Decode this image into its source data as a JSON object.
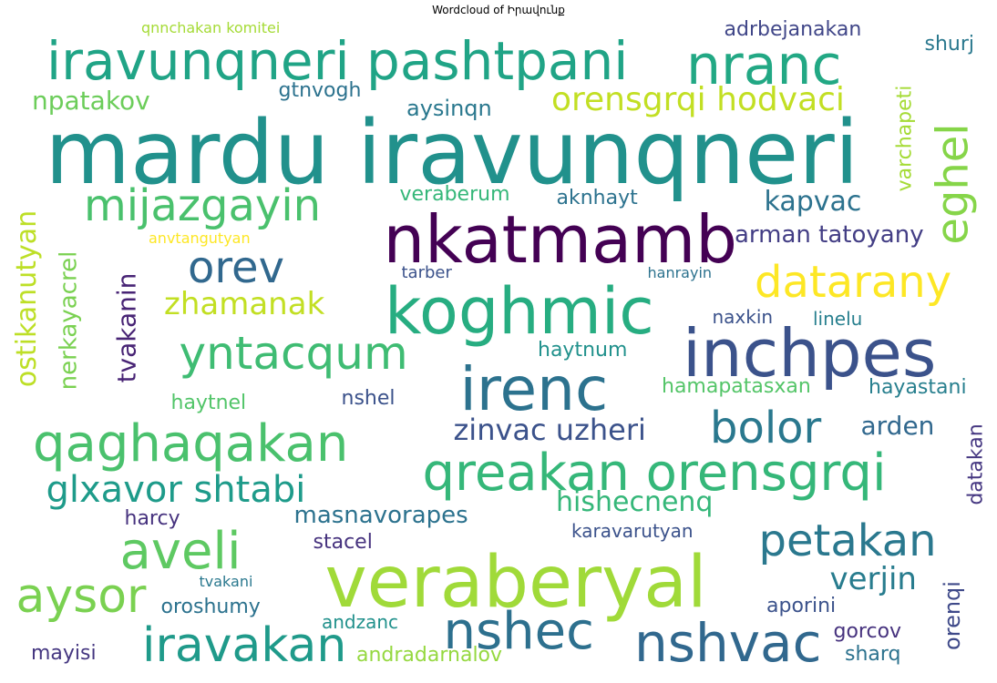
{
  "title": "Wordcloud of Իրավունք",
  "words": [
    {
      "text": "mardu iravunqneri",
      "color": "#21918c"
    },
    {
      "text": "veraberyal",
      "color": "#a0da39"
    },
    {
      "text": "nkatmamb",
      "color": "#440154"
    },
    {
      "text": "inchpes",
      "color": "#3b528b"
    },
    {
      "text": "koghmic",
      "color": "#27ad81"
    },
    {
      "text": "iravunqneri pashtpani",
      "color": "#20a486"
    },
    {
      "text": "nranc",
      "color": "#22a884"
    },
    {
      "text": "irenc",
      "color": "#2c728e"
    },
    {
      "text": "qaghaqakan",
      "color": "#4ac16d"
    },
    {
      "text": "qreakan orensgrqi",
      "color": "#35b779"
    },
    {
      "text": "nshvac",
      "color": "#31688e"
    },
    {
      "text": "iravakan",
      "color": "#1f9a8a"
    },
    {
      "text": "nshec",
      "color": "#2d708e"
    },
    {
      "text": "aveli",
      "color": "#5ec962"
    },
    {
      "text": "mijazgayin",
      "color": "#4ac16d"
    },
    {
      "text": "datarany",
      "color": "#fde725"
    },
    {
      "text": "petakan",
      "color": "#2a788e"
    },
    {
      "text": "aysor",
      "color": "#7ad151"
    },
    {
      "text": "yntacqum",
      "color": "#3fbc73"
    },
    {
      "text": "bolor",
      "color": "#2a788e"
    },
    {
      "text": "orev",
      "color": "#31688e"
    },
    {
      "text": "eghel",
      "color": "#86d549"
    },
    {
      "text": "glxavor shtabi",
      "color": "#1e9b8a"
    },
    {
      "text": "orensgrqi hodvaci",
      "color": "#c2df23"
    },
    {
      "text": "zhamanak",
      "color": "#c2df23"
    },
    {
      "text": "verjin",
      "color": "#287c8e"
    },
    {
      "text": "zinvac uzheri",
      "color": "#3b528b"
    },
    {
      "text": "ostikanutyan",
      "color": "#bddf26"
    },
    {
      "text": "kapvac",
      "color": "#2c728e"
    },
    {
      "text": "hishecnenq",
      "color": "#35b779"
    },
    {
      "text": "npatakov",
      "color": "#6ccd5a"
    },
    {
      "text": "masnavorapes",
      "color": "#2c728e"
    },
    {
      "text": "arden",
      "color": "#31688e"
    },
    {
      "text": "nerkayacrel",
      "color": "#7ad151"
    },
    {
      "text": "tvakanin",
      "color": "#482475"
    },
    {
      "text": "arman tatoyany",
      "color": "#433e85"
    },
    {
      "text": "aysinqn",
      "color": "#2a788e"
    },
    {
      "text": "orenqi",
      "color": "#3e4989"
    },
    {
      "text": "gtnvogh",
      "color": "#2c728e"
    },
    {
      "text": "varchapeti",
      "color": "#a5db36"
    },
    {
      "text": "adrbejanakan",
      "color": "#404688"
    },
    {
      "text": "shurj",
      "color": "#2a788e"
    },
    {
      "text": "veraberum",
      "color": "#35b779"
    },
    {
      "text": "aknhayt",
      "color": "#2c728e"
    },
    {
      "text": "naxkin",
      "color": "#3b528b"
    },
    {
      "text": "linelu",
      "color": "#277f8e"
    },
    {
      "text": "haytnum",
      "color": "#21918c"
    },
    {
      "text": "hamapatasxan",
      "color": "#54c568"
    },
    {
      "text": "hayastani",
      "color": "#277f8e"
    },
    {
      "text": "haytnel",
      "color": "#52c569"
    },
    {
      "text": "nshel",
      "color": "#3b528b"
    },
    {
      "text": "datakan",
      "color": "#453781"
    },
    {
      "text": "harcy",
      "color": "#46327e"
    },
    {
      "text": "karavarutyan",
      "color": "#3b528b"
    },
    {
      "text": "stacel",
      "color": "#46327e"
    },
    {
      "text": "oroshumy",
      "color": "#2c728e"
    },
    {
      "text": "andzanc",
      "color": "#21918c"
    },
    {
      "text": "aporini",
      "color": "#3b528b"
    },
    {
      "text": "gorcov",
      "color": "#46327e"
    },
    {
      "text": "sharq",
      "color": "#2c728e"
    },
    {
      "text": "mayisi",
      "color": "#453781"
    },
    {
      "text": "andradarnalov",
      "color": "#95d840"
    },
    {
      "text": "tarber",
      "color": "#3b528b"
    },
    {
      "text": "hanrayin",
      "color": "#2c728e"
    },
    {
      "text": "anvtangutyan",
      "color": "#fde725"
    },
    {
      "text": "tvakani",
      "color": "#2a788e"
    },
    {
      "text": "qnnchakan komitei",
      "color": "#a5db36"
    }
  ]
}
